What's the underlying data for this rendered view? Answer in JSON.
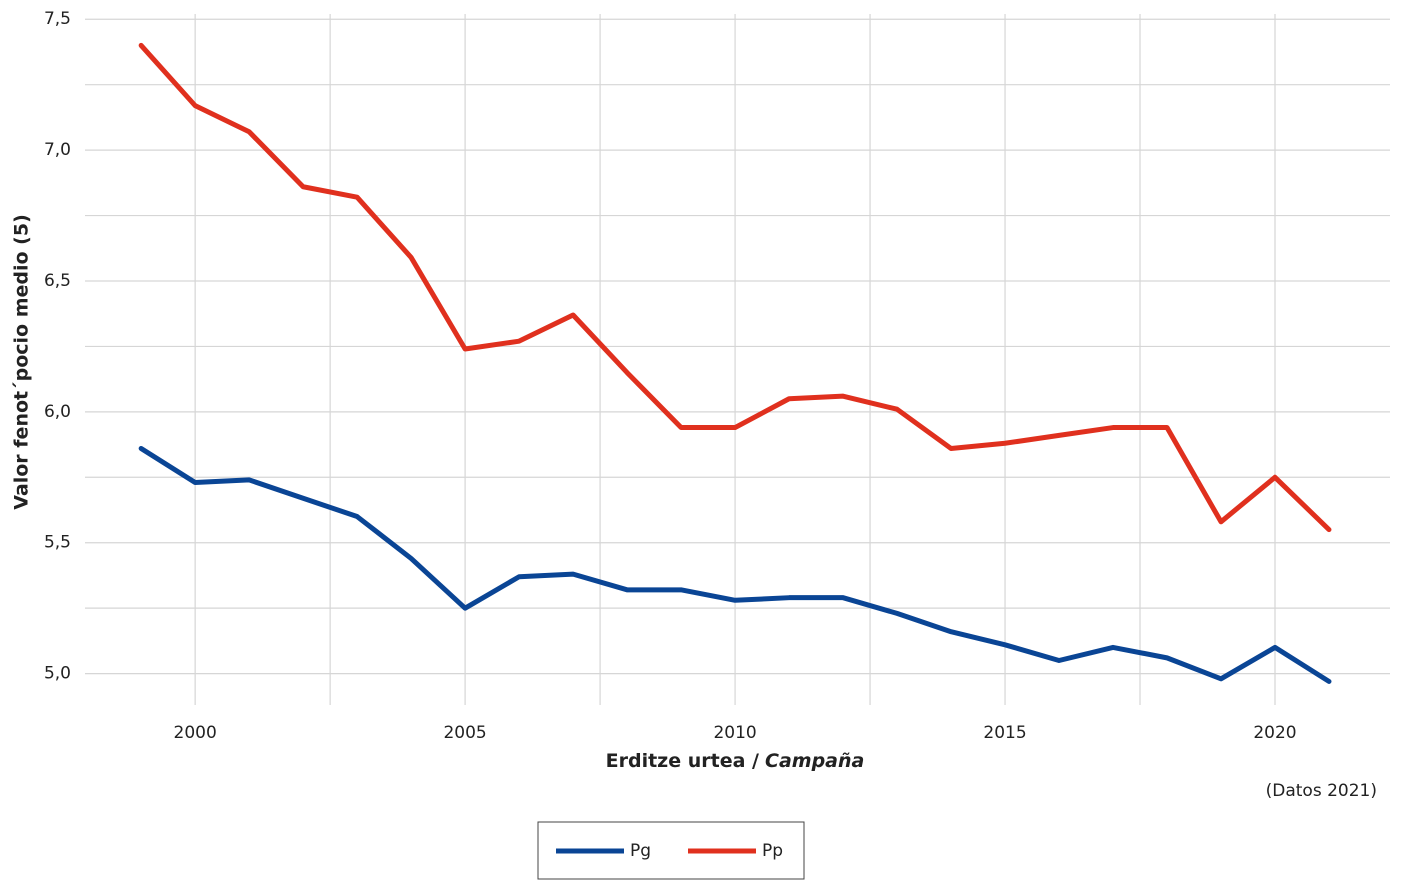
{
  "chart_data": {
    "type": "line",
    "ylabel": "Valor fenot´pocio medio (5)",
    "xlabel": [
      "Erditze urtea /",
      "Campaña"
    ],
    "note": "(Datos 2021)",
    "x": [
      1999,
      2000,
      2001,
      2002,
      2003,
      2004,
      2005,
      2006,
      2007,
      2008,
      2009,
      2010,
      2011,
      2012,
      2013,
      2014,
      2015,
      2016,
      2017,
      2018,
      2019,
      2020,
      2021
    ],
    "series": [
      {
        "name": "Pg",
        "color": "#0a4595",
        "values": [
          5.86,
          5.73,
          5.74,
          5.67,
          5.6,
          5.44,
          5.25,
          5.37,
          5.38,
          5.32,
          5.32,
          5.28,
          5.29,
          5.29,
          5.23,
          5.16,
          5.11,
          5.05,
          5.1,
          5.06,
          4.98,
          5.1,
          4.97
        ]
      },
      {
        "name": "Pp",
        "color": "#e0301e",
        "values": [
          7.4,
          7.17,
          7.07,
          6.86,
          6.82,
          6.59,
          6.24,
          6.27,
          6.37,
          6.15,
          5.94,
          5.94,
          6.05,
          6.06,
          6.01,
          5.86,
          5.88,
          5.91,
          5.94,
          5.94,
          5.58,
          5.75,
          5.55
        ]
      }
    ],
    "xlim": [
      1997.96,
      2022.13
    ],
    "ylim": [
      4.88,
      7.52
    ],
    "xticks": [
      2000,
      2005,
      2010,
      2015,
      2020
    ],
    "yticks": [
      {
        "value": 5.0,
        "label": "5,0"
      },
      {
        "value": 5.5,
        "label": "5,5"
      },
      {
        "value": 6.0,
        "label": "6,0"
      },
      {
        "value": 6.5,
        "label": "6,5"
      },
      {
        "value": 7.0,
        "label": "7,0"
      },
      {
        "value": 7.5,
        "label": "7,5"
      }
    ],
    "xgrid_minor": [
      2002.5,
      2007.5,
      2012.5,
      2017.5
    ],
    "ygrid_minor": [
      5.25,
      5.75,
      6.25,
      6.75,
      7.25
    ],
    "grid": true,
    "legend": "bottom"
  }
}
